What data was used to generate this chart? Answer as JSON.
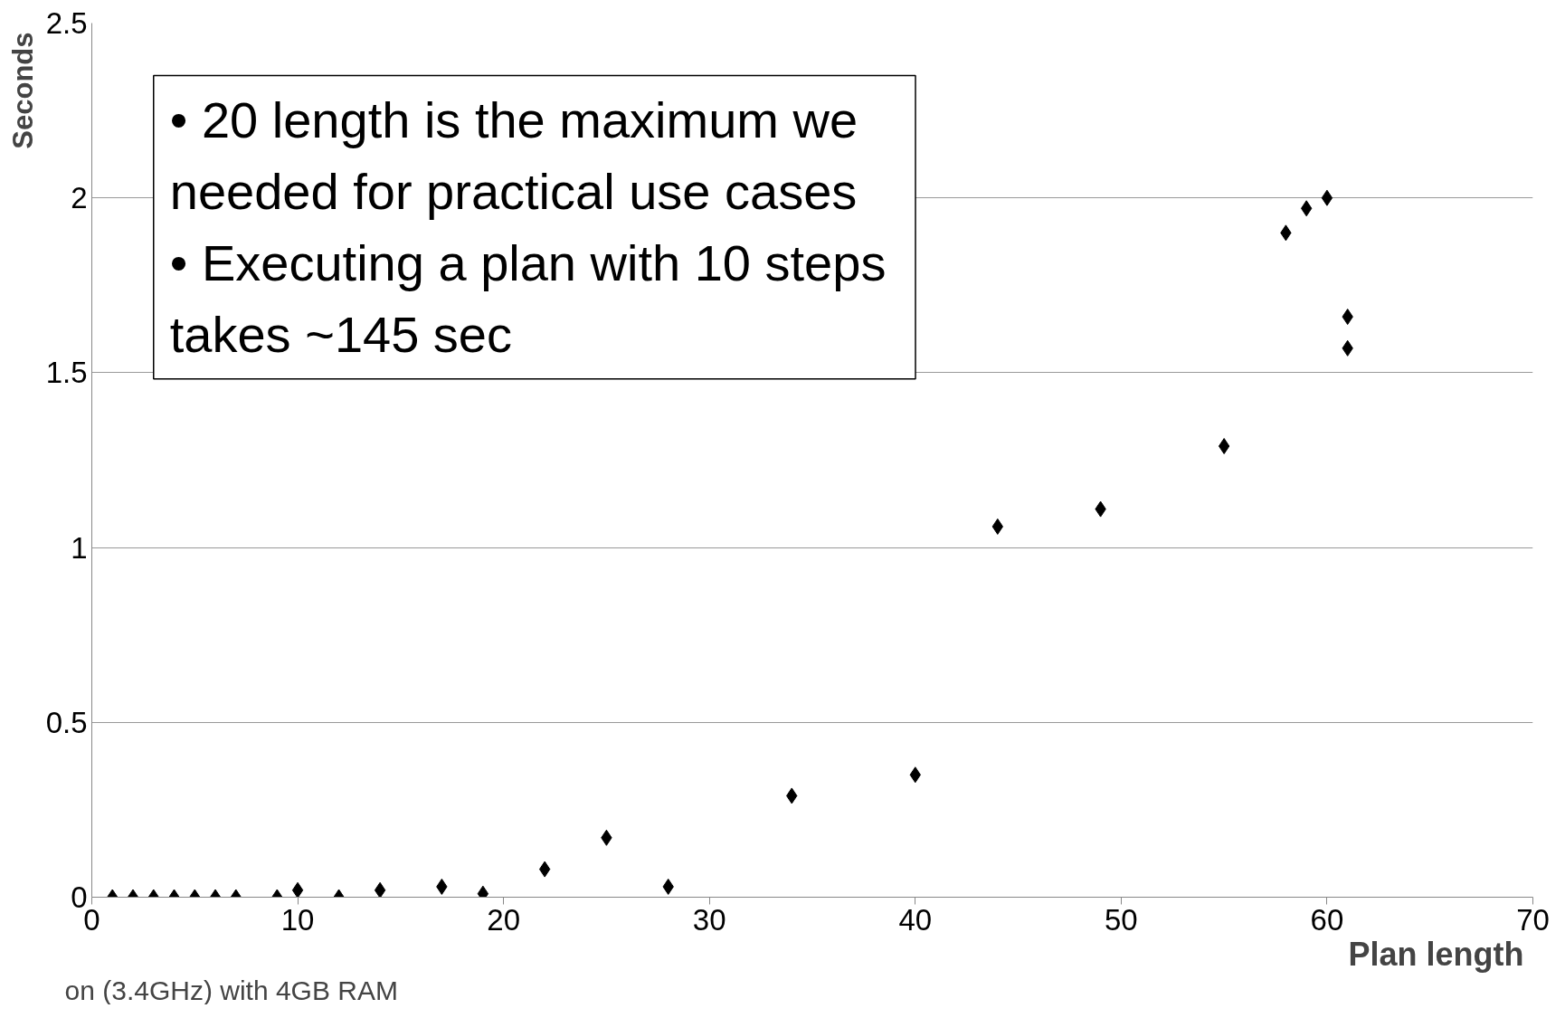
{
  "chart_data": {
    "type": "scatter",
    "xlabel": "Plan length",
    "ylabel": "Seconds",
    "x": [
      1,
      2,
      3,
      4,
      5,
      6,
      7,
      9,
      10,
      12,
      14,
      17,
      19,
      22,
      25,
      28,
      34,
      40,
      44,
      49,
      55,
      58,
      59,
      60,
      61,
      61
    ],
    "series": [
      {
        "color": "#000000",
        "values": [
          0,
          0,
          0,
          0,
          0,
          0,
          0,
          0,
          0.02,
          0,
          0.02,
          0.03,
          0.01,
          0.08,
          0.17,
          0.03,
          0.29,
          0.35,
          1.06,
          1.11,
          1.29,
          1.9,
          1.97,
          2.0,
          1.66,
          1.57
        ]
      }
    ],
    "xlim": [
      0,
      70
    ],
    "xticks": [
      0,
      10,
      20,
      30,
      40,
      50,
      60,
      70
    ],
    "ylim": [
      0,
      2.5
    ],
    "yticks": [
      0,
      0.5,
      1,
      1.5,
      2,
      2.5
    ],
    "grid": "y",
    "marker": "diamond",
    "annotations": [
      "• 20 length is the maximum we needed for practical use cases",
      "• Executing a plan with 10 steps takes ~145 sec",
      "on (3.4GHz) with 4GB RAM"
    ]
  }
}
